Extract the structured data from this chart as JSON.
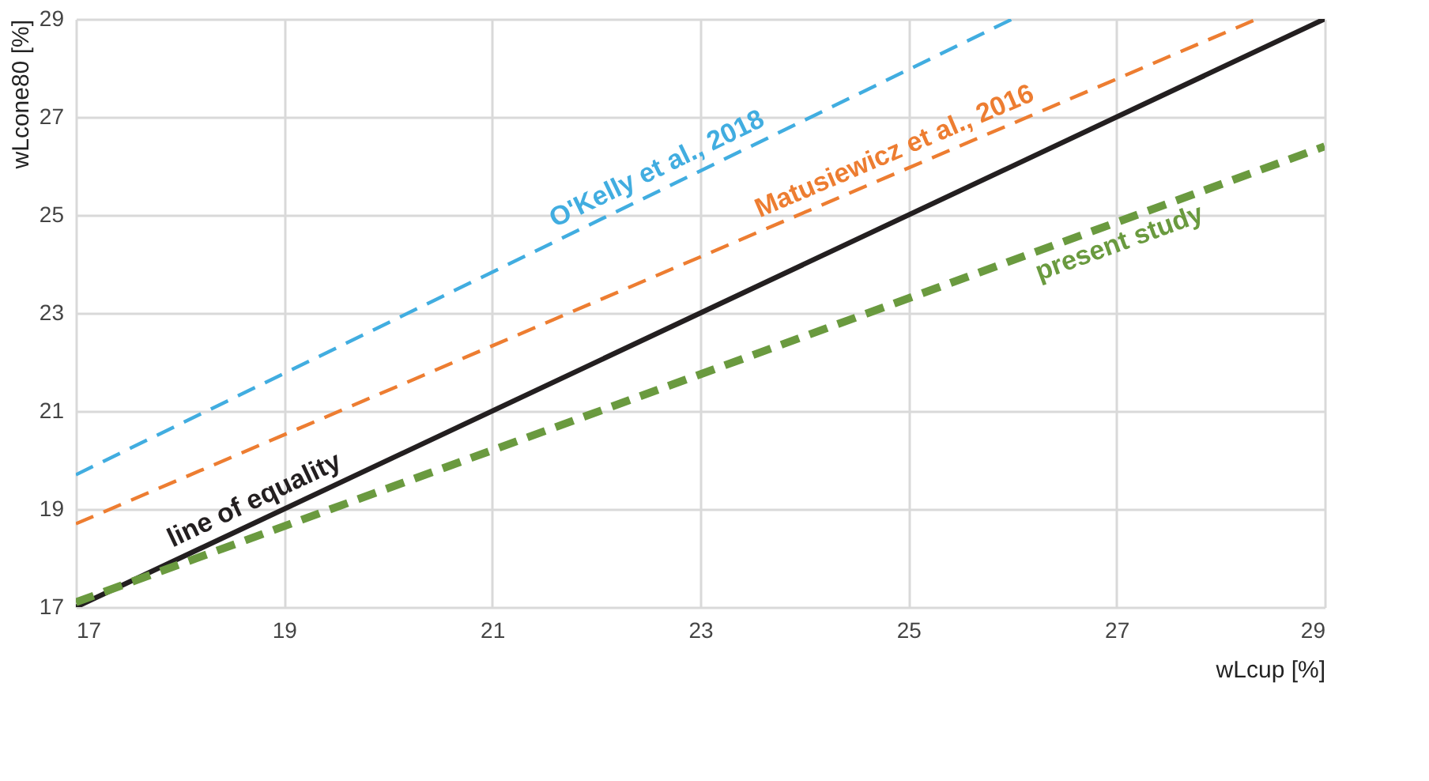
{
  "chart_data": {
    "type": "line",
    "xlabel": "wLcup [%]",
    "ylabel": "wLcone80 [%]",
    "xlim": [
      17,
      29
    ],
    "ylim": [
      17,
      29
    ],
    "xticks": [
      17,
      19,
      21,
      23,
      25,
      27,
      29
    ],
    "yticks": [
      17,
      19,
      21,
      23,
      25,
      27,
      29
    ],
    "grid": true,
    "marker": "none",
    "series": [
      {
        "name": "O'Kelly et al., 2018",
        "color": "#41ade0",
        "x": [
          17,
          26
        ],
        "values": [
          19.7,
          29
        ],
        "line_style": "dashed"
      },
      {
        "name": "Matusiewicz et al., 2016",
        "color": "#ed7d31",
        "x": [
          17,
          28.35
        ],
        "values": [
          18.7,
          29
        ],
        "line_style": "dashed"
      },
      {
        "name": "line of equality",
        "color": "#231f20",
        "x": [
          17,
          29
        ],
        "values": [
          17,
          29
        ],
        "line_style": "solid"
      },
      {
        "name": "present study",
        "color": "#6a9a3f",
        "x": [
          17,
          29
        ],
        "values": [
          17.1,
          26.4
        ],
        "line_style": "dashed"
      }
    ]
  }
}
